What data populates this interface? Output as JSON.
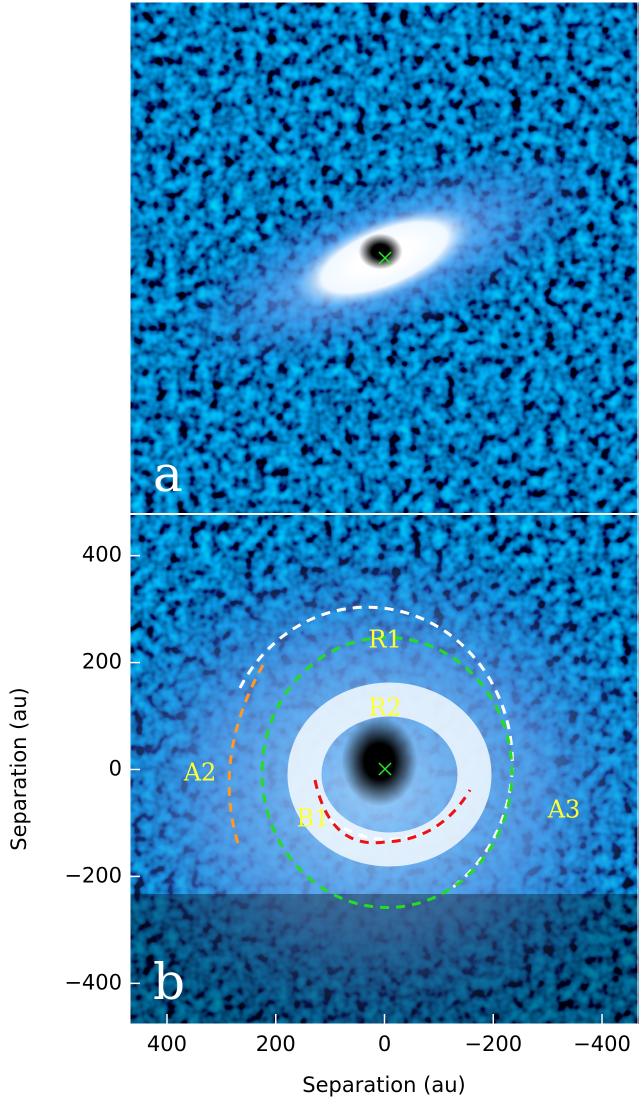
{
  "chart_data": [
    {
      "type": "image",
      "panel_label": "a"
    },
    {
      "type": "image",
      "panel_label": "b",
      "xlabel": "Separation (au)",
      "ylabel": "Separation (au)",
      "xlim": [
        468,
        -468
      ],
      "ylim": [
        -476,
        476
      ],
      "xticks": [
        400,
        200,
        0,
        {
          "value": -200,
          "label": "−200"
        },
        {
          "value": -400,
          "label": "−400"
        }
      ],
      "yticks": [
        {
          "value": -400,
          "label": "−400"
        },
        {
          "value": -200,
          "label": "−200"
        },
        0,
        200,
        400
      ],
      "annotations": [
        "R1",
        "R2",
        "A2",
        "A3",
        "B1"
      ]
    }
  ]
}
